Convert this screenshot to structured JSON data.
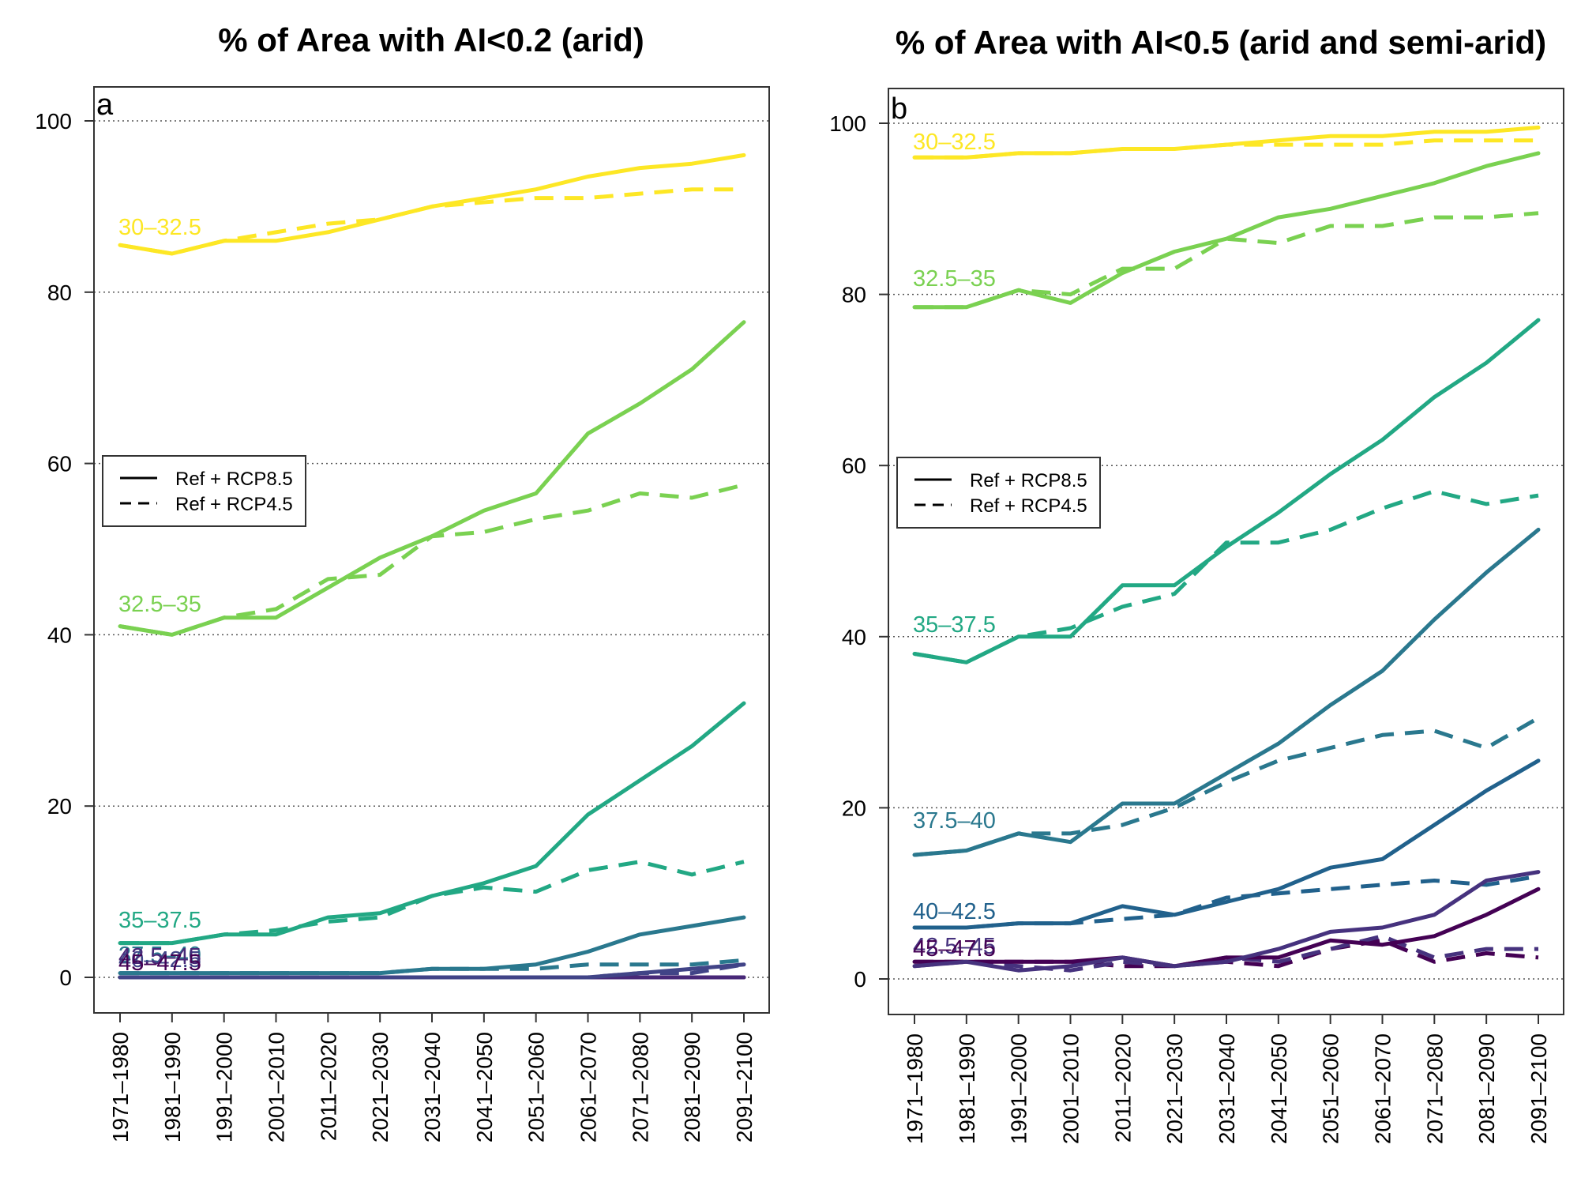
{
  "chart_data": [
    {
      "type": "line",
      "panel": "a",
      "title": "% of Area with AI<0.2 (arid)",
      "xlabel": "",
      "ylabel": "",
      "ylim": [
        0,
        100
      ],
      "yticks": [
        0,
        20,
        40,
        60,
        80,
        100
      ],
      "grid": "horizontal dotted",
      "legend": {
        "placement": "middle-left",
        "entries": [
          "Ref + RCP8.5",
          "Ref + RCP4.5"
        ],
        "styles": [
          "solid",
          "dashed"
        ]
      },
      "categories": [
        "1971–1980",
        "1981–1990",
        "1991–2000",
        "2001–2010",
        "2011–2020",
        "2021–2030",
        "2031–2040",
        "2041–2050",
        "2051–2060",
        "2061–2070",
        "2071–2080",
        "2081–2090",
        "2091–2100"
      ],
      "series": [
        {
          "name": "30–32.5",
          "color": "#fde725",
          "rcp85": [
            85.5,
            84.5,
            86,
            86,
            87,
            88.5,
            90,
            91,
            92,
            93.5,
            94.5,
            95,
            96
          ],
          "rcp45": [
            85.5,
            84.5,
            86,
            87,
            88,
            88.5,
            90,
            90.5,
            91,
            91,
            91.5,
            92,
            92
          ]
        },
        {
          "name": "32.5–35",
          "color": "#7ad151",
          "rcp85": [
            41,
            40,
            42,
            42,
            45.5,
            49,
            51.5,
            54.5,
            56.5,
            63.5,
            67,
            71,
            76.5
          ],
          "rcp45": [
            41,
            40,
            42,
            43,
            46.5,
            47,
            51.5,
            52,
            53.5,
            54.5,
            56.5,
            56,
            57.5
          ]
        },
        {
          "name": "35–37.5",
          "color": "#22a884",
          "rcp85": [
            4,
            4,
            5,
            5,
            7,
            7.5,
            9.5,
            11,
            13,
            19,
            23,
            27,
            32
          ],
          "rcp45": [
            4,
            4,
            5,
            5.5,
            6.5,
            7,
            9.5,
            10.5,
            10,
            12.5,
            13.5,
            12,
            13.5
          ]
        },
        {
          "name": "37.5–40",
          "color": "#2a788e",
          "rcp85": [
            0.5,
            0.5,
            0.5,
            0.5,
            0.5,
            0.5,
            1,
            1,
            1.5,
            3,
            5,
            6,
            7
          ],
          "rcp45": [
            0.5,
            0.5,
            0.5,
            0.5,
            0.5,
            0.5,
            1,
            1,
            1,
            1.5,
            1.5,
            1.5,
            2
          ]
        },
        {
          "name": "40–42.5",
          "color": "#414487",
          "rcp85": [
            0,
            0,
            0,
            0,
            0,
            0,
            0,
            0,
            0,
            0,
            0.5,
            1,
            1.5
          ],
          "rcp45": [
            0,
            0,
            0,
            0,
            0,
            0,
            0,
            0,
            0,
            0,
            0.5,
            0.5,
            1.5
          ]
        },
        {
          "name": "42.5–45",
          "color": "#482878",
          "rcp85": [
            0,
            0,
            0,
            0,
            0,
            0,
            0,
            0,
            0,
            0,
            0,
            0,
            0
          ],
          "rcp45": [
            0,
            0,
            0,
            0,
            0,
            0,
            0,
            0,
            0,
            0,
            0,
            0,
            0
          ]
        },
        {
          "name": "45–47.5",
          "color": "#440154",
          "rcp85": [
            0,
            0,
            0,
            0,
            0,
            0,
            0,
            0,
            0,
            0,
            0,
            0,
            0
          ],
          "rcp45": [
            0,
            0,
            0,
            0,
            0,
            0,
            0,
            0,
            0,
            0,
            0,
            0,
            0
          ]
        }
      ]
    },
    {
      "type": "line",
      "panel": "b",
      "title": "% of Area with AI<0.5 (arid and semi-arid)",
      "xlabel": "",
      "ylabel": "",
      "ylim": [
        0,
        100
      ],
      "yticks": [
        0,
        20,
        40,
        60,
        80,
        100
      ],
      "grid": "horizontal dotted",
      "legend": {
        "placement": "middle-left",
        "entries": [
          "Ref + RCP8.5",
          "Ref + RCP4.5"
        ],
        "styles": [
          "solid",
          "dashed"
        ]
      },
      "categories": [
        "1971–1980",
        "1981–1990",
        "1991–2000",
        "2001–2010",
        "2011–2020",
        "2021–2030",
        "2031–2040",
        "2041–2050",
        "2051–2060",
        "2061–2070",
        "2071–2080",
        "2081–2090",
        "2091–2100"
      ],
      "series": [
        {
          "name": "30–32.5",
          "color": "#fde725",
          "rcp85": [
            96,
            96,
            96.5,
            96.5,
            97,
            97,
            97.5,
            98,
            98.5,
            98.5,
            99,
            99,
            99.5
          ],
          "rcp45": [
            96,
            96,
            96.5,
            96.5,
            97,
            97,
            97.5,
            97.5,
            97.5,
            97.5,
            98,
            98,
            98
          ]
        },
        {
          "name": "32.5–35",
          "color": "#7ad151",
          "rcp85": [
            78.5,
            78.5,
            80.5,
            79,
            82.5,
            85,
            86.5,
            89,
            90,
            91.5,
            93,
            95,
            96.5
          ],
          "rcp45": [
            78.5,
            78.5,
            80.5,
            80,
            83,
            83,
            86.5,
            86,
            88,
            88,
            89,
            89,
            89.5
          ]
        },
        {
          "name": "35–37.5",
          "color": "#22a884",
          "rcp85": [
            38,
            37,
            40,
            40,
            46,
            46,
            50.5,
            54.5,
            59,
            63,
            68,
            72,
            77
          ],
          "rcp45": [
            38,
            37,
            40,
            41,
            43.5,
            45,
            51,
            51,
            52.5,
            55,
            57,
            55.5,
            56.5
          ]
        },
        {
          "name": "37.5–40",
          "color": "#2a788e",
          "rcp85": [
            14.5,
            15,
            17,
            16,
            20.5,
            20.5,
            24,
            27.5,
            32,
            36,
            42,
            47.5,
            52.5
          ],
          "rcp45": [
            14.5,
            15,
            17,
            17,
            18,
            20,
            23,
            25.5,
            27,
            28.5,
            29,
            27,
            30.5
          ]
        },
        {
          "name": "40–42.5",
          "color": "#21618c",
          "rcp85": [
            6,
            6,
            6.5,
            6.5,
            8.5,
            7.5,
            9,
            10.5,
            13,
            14,
            18,
            22,
            25.5
          ],
          "rcp45": [
            6,
            6,
            6.5,
            6.5,
            7,
            7.5,
            9.5,
            10,
            10.5,
            11,
            11.5,
            11,
            12
          ]
        },
        {
          "name": "42.5–45",
          "color": "#46327e",
          "rcp85": [
            1.5,
            2,
            1,
            1.5,
            2.5,
            1.5,
            2,
            3.5,
            5.5,
            6,
            7.5,
            11.5,
            12.5
          ],
          "rcp45": [
            1.5,
            2,
            1.5,
            1,
            2,
            1.5,
            2.5,
            2,
            3.5,
            5,
            2.5,
            3.5,
            3.5
          ]
        },
        {
          "name": "45–47.5",
          "color": "#440154",
          "rcp85": [
            2,
            2,
            2,
            2,
            2.5,
            1.5,
            2.5,
            2.5,
            4.5,
            4,
            5,
            7.5,
            10.5
          ],
          "rcp45": [
            2,
            2,
            2,
            2,
            1.5,
            1.5,
            2,
            1.5,
            3.5,
            4.5,
            2,
            3,
            2.5
          ]
        }
      ]
    }
  ]
}
